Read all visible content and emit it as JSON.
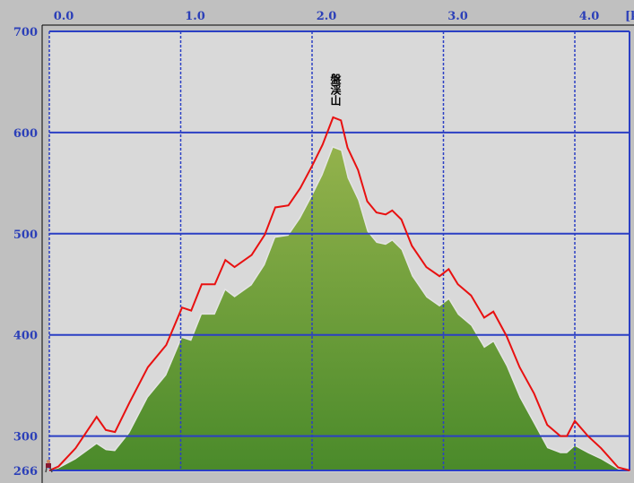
{
  "chart_data": {
    "type": "area",
    "title": "",
    "xlabel": "[km]",
    "ylabel": "",
    "xlim": [
      0,
      4.42
    ],
    "ylim": [
      266,
      700
    ],
    "x_ticks": [
      "0.0",
      "1.0",
      "2.0",
      "3.0",
      "4.0"
    ],
    "x_tick_values": [
      0,
      1,
      2,
      3,
      4
    ],
    "y_ticks": [
      "266",
      "300",
      "400",
      "500",
      "600",
      "700"
    ],
    "y_tick_values": [
      266,
      300,
      400,
      500,
      600,
      700
    ],
    "grid": true,
    "annotations": [
      {
        "text": "盤渓山",
        "x": 2.16,
        "y": 615
      }
    ],
    "x": [
      0,
      0.07,
      0.2,
      0.36,
      0.43,
      0.5,
      0.61,
      0.75,
      0.89,
      1.01,
      1.08,
      1.16,
      1.26,
      1.34,
      1.41,
      1.54,
      1.64,
      1.72,
      1.82,
      1.91,
      2.0,
      2.08,
      2.16,
      2.22,
      2.27,
      2.35,
      2.42,
      2.49,
      2.56,
      2.61,
      2.68,
      2.76,
      2.87,
      2.97,
      3.04,
      3.11,
      3.21,
      3.31,
      3.38,
      3.48,
      3.58,
      3.69,
      3.79,
      3.89,
      3.94,
      4.0,
      4.1,
      4.2,
      4.33,
      4.42
    ],
    "series": [
      {
        "kind": "line",
        "color": "#e81010",
        "values": [
          266,
          270,
          288,
          319,
          306,
          304,
          333,
          368,
          390,
          427,
          424,
          450,
          450,
          474,
          467,
          479,
          499,
          526,
          528,
          545,
          567,
          588,
          615,
          612,
          585,
          563,
          532,
          521,
          519,
          523,
          514,
          488,
          467,
          458,
          465,
          450,
          439,
          417,
          423,
          399,
          368,
          342,
          311,
          300,
          300,
          315,
          300,
          288,
          269,
          266
        ]
      },
      {
        "kind": "area",
        "color": "#6a9c38",
        "values": [
          266,
          268,
          277,
          292,
          286,
          285,
          303,
          338,
          360,
          397,
          394,
          420,
          420,
          444,
          437,
          449,
          469,
          496,
          498,
          515,
          537,
          558,
          585,
          582,
          555,
          533,
          502,
          491,
          489,
          493,
          484,
          458,
          437,
          428,
          435,
          420,
          409,
          387,
          393,
          369,
          338,
          312,
          288,
          283,
          283,
          290,
          283,
          277,
          267,
          266
        ]
      }
    ],
    "colors": {
      "background": "#c0c0c0",
      "plot": "#d9d9d9",
      "grid": "#2b3fc4",
      "terrain_top": "#93b24c",
      "terrain_bottom": "#4a8a2a",
      "profile": "#e81010"
    },
    "hiker_icon": "hiker-icon"
  }
}
